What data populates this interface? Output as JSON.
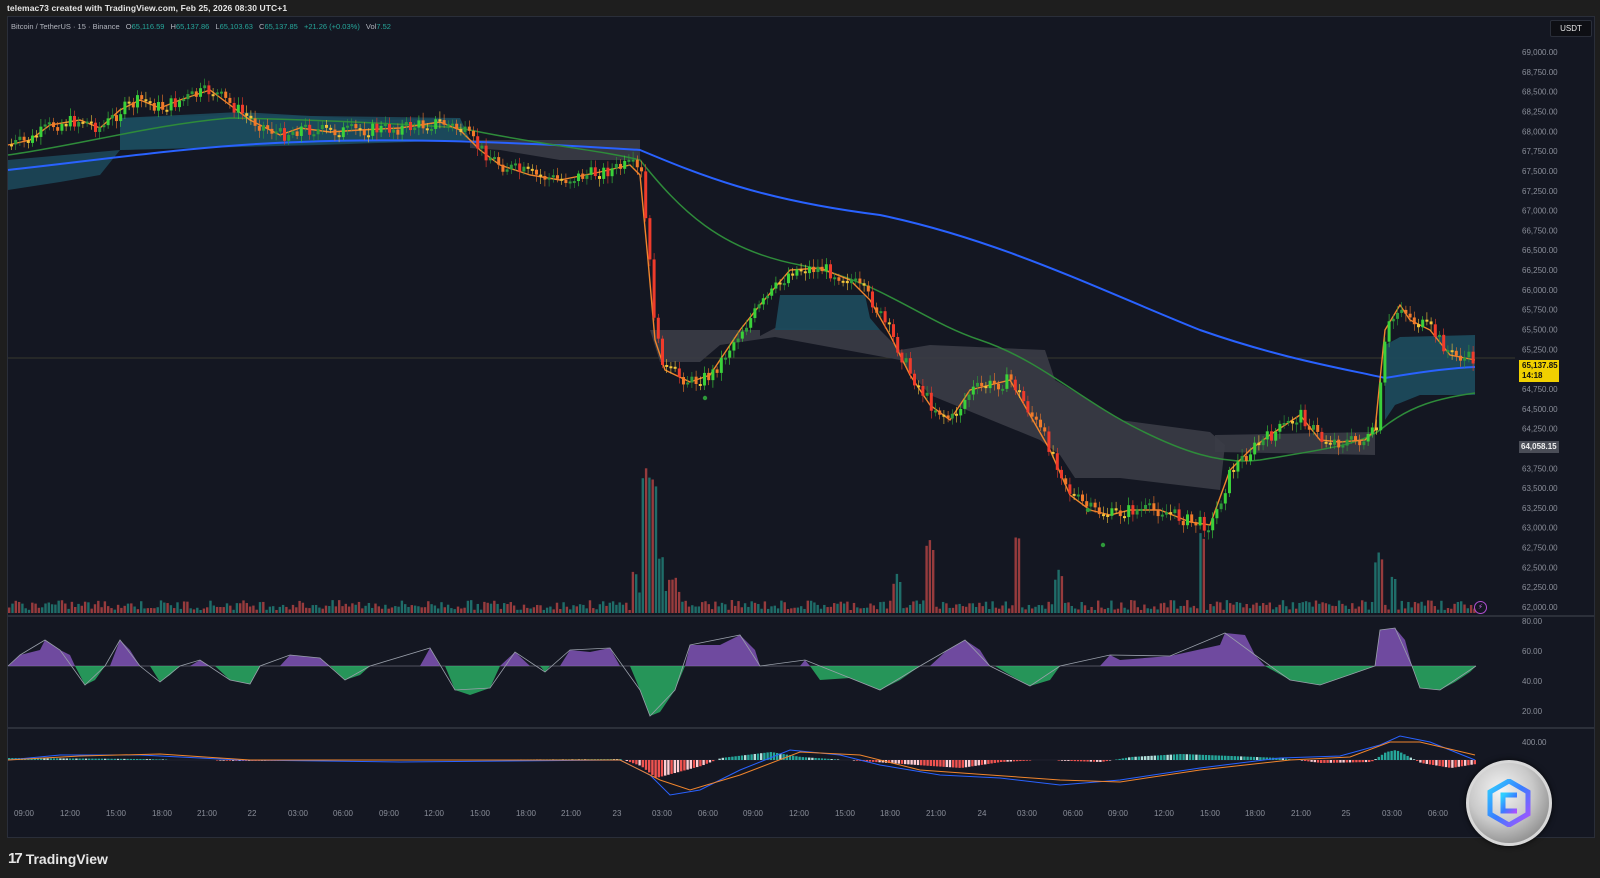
{
  "header": {
    "attribution": "telemac73 created with TradingView.com, Feb 25, 2026 08:30 UTC+1"
  },
  "legend": {
    "symbol": "Bitcoin / TetherUS · 15 · Binance",
    "open_label": "O",
    "open": "65,116.59",
    "high_label": "H",
    "high": "65,137.86",
    "low_label": "L",
    "low": "65,103.63",
    "close_label": "C",
    "close": "65,137.85",
    "change": "+21.26 (+0.03%)",
    "vol_label": "Vol",
    "vol": "7.52"
  },
  "currency_button": "USDT",
  "price_tag": {
    "price": "65,137.85",
    "countdown": "14:18"
  },
  "low_tag": "64,058.15",
  "footer": {
    "brand": "TradingView",
    "brand_mark": "17"
  },
  "icons": {
    "flash": "⚡"
  },
  "colors": {
    "background": "#141722",
    "up": "#26a69a",
    "down": "#ef5350",
    "ema_fast": "#f0852d",
    "ema_mid": "#2e8b3a",
    "ema_slow": "#2962ff",
    "cloud_bull": "#1c4a5c",
    "cloud_bear": "#3a3c46",
    "price_tag": "#f0d000",
    "osc_bull": "#9b59d0",
    "osc_bear": "#2ecc71"
  },
  "chart_data": [
    {
      "type": "candlestick",
      "title": "Bitcoin / TetherUS · 15 · Binance",
      "ylabel": "USDT",
      "ylim": [
        62000,
        69000
      ],
      "y_ticks": [
        "69,000.00",
        "68,750.00",
        "68,500.00",
        "68,250.00",
        "68,000.00",
        "67,750.00",
        "67,500.00",
        "67,250.00",
        "67,000.00",
        "66,750.00",
        "66,500.00",
        "66,250.00",
        "66,000.00",
        "65,750.00",
        "65,500.00",
        "65,250.00",
        "65,000.00",
        "64,750.00",
        "64,500.00",
        "64,250.00",
        "64,000.00",
        "63,750.00",
        "63,500.00",
        "63,250.00",
        "63,000.00",
        "62,750.00",
        "62,500.00",
        "62,250.00",
        "62,000.00"
      ],
      "x_ticks": [
        "09:00",
        "12:00",
        "15:00",
        "18:00",
        "21:00",
        "22",
        "03:00",
        "06:00",
        "09:00",
        "12:00",
        "15:00",
        "18:00",
        "21:00",
        "23",
        "03:00",
        "06:00",
        "09:00",
        "12:00",
        "15:00",
        "18:00",
        "21:00",
        "24",
        "03:00",
        "06:00",
        "09:00",
        "12:00",
        "15:00",
        "18:00",
        "21:00",
        "25",
        "03:00",
        "06:00"
      ],
      "close_path": {
        "x": [
          "21 09:00",
          "21 12:00",
          "21 15:00",
          "21 16:00",
          "21 18:00",
          "21 20:00",
          "21 22:00",
          "22 00:00",
          "22 03:00",
          "22 06:00",
          "22 09:00",
          "22 12:00",
          "22 13:00",
          "22 15:00",
          "22 18:00",
          "22 21:00",
          "23 00:00",
          "23 00:30",
          "23 01:00",
          "23 03:00",
          "23 06:00",
          "23 09:00",
          "23 12:00",
          "23 15:00",
          "23 18:00",
          "23 21:00",
          "24 00:00",
          "24 03:00",
          "24 05:00",
          "24 06:00",
          "24 09:00",
          "24 12:00",
          "24 14:00",
          "24 15:00",
          "24 18:00",
          "24 21:00",
          "25 00:00",
          "25 01:00",
          "25 02:00",
          "25 03:00",
          "25 06:00",
          "25 08:15"
        ],
        "close": [
          67800,
          68100,
          68350,
          68550,
          68250,
          68550,
          68350,
          68050,
          67950,
          68100,
          68000,
          68050,
          68050,
          67550,
          67300,
          67400,
          67600,
          66000,
          64900,
          64700,
          64700,
          65700,
          66300,
          66250,
          65800,
          64650,
          64600,
          64800,
          64200,
          63400,
          63100,
          63150,
          62900,
          63200,
          64050,
          64300,
          64050,
          64050,
          65700,
          65800,
          65300,
          65138
        ]
      },
      "overlays": [
        {
          "name": "EMA fast",
          "color": "#f0852d"
        },
        {
          "name": "EMA mid",
          "color": "#2e8b3a"
        },
        {
          "name": "EMA slow",
          "color": "#2962ff",
          "values_start_end": [
            67550,
            65000
          ]
        },
        {
          "name": "Trend cloud (bull)",
          "color": "#1c4a5c"
        },
        {
          "name": "Trend cloud (bear)",
          "color": "#3a3c46"
        }
      ],
      "last_price": 65137.85,
      "marked_level": 64058.15
    },
    {
      "type": "bar",
      "title": "Volume",
      "notes": "Spikes: ~23 01:00 (largest, red), 24 03:00 (red), 24 15:00 (teal), 25 02:00 (teal)"
    },
    {
      "type": "area",
      "title": "Oscillator (RSI-style)",
      "ylim": [
        10,
        80
      ],
      "y_ticks": [
        "80.00",
        "60.00",
        "40.00",
        "20.00"
      ],
      "midline": 50,
      "extremes": {
        "max": 72,
        "min": 16
      }
    },
    {
      "type": "bar",
      "title": "MACD",
      "y_ticks": [
        "400.00"
      ],
      "series": [
        {
          "name": "MACD",
          "color": "#2962ff"
        },
        {
          "name": "Signal",
          "color": "#f0852d"
        },
        {
          "name": "Histogram",
          "color": "mixed teal/red"
        }
      ]
    }
  ]
}
